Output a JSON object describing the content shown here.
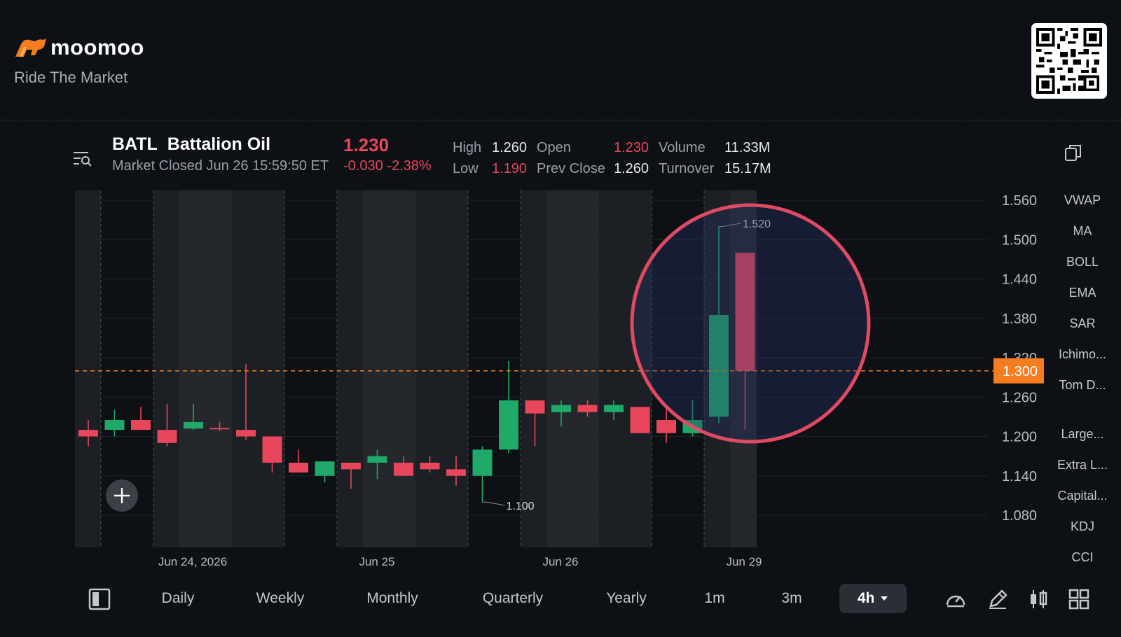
{
  "brand": {
    "name": "moomoo",
    "tagline": "Ride The Market"
  },
  "quote": {
    "ticker": "BATL",
    "company": "Battalion Oil",
    "status": "Market Closed Jun 26 15:59:50 ET",
    "price": "1.230",
    "change": "-0.030",
    "change_pct": "-2.38%",
    "high_label": "High",
    "high": "1.260",
    "low_label": "Low",
    "low": "1.190",
    "open_label": "Open",
    "open": "1.230",
    "prev_close_label": "Prev Close",
    "prev_close": "1.260",
    "volume_label": "Volume",
    "volume": "11.33M",
    "turnover_label": "Turnover",
    "turnover": "15.17M"
  },
  "colors": {
    "up": "#1faa6a",
    "down": "#e8465a",
    "accent": "#f57d1f",
    "highlight": "#e04a63",
    "background": "#0d1014"
  },
  "icons": [
    "moomoo-bull-logo",
    "qr-code",
    "menu-search-icon",
    "copy-icon",
    "add-icon",
    "layout-icon",
    "speedometer-icon",
    "pencil-icon",
    "candlestick-icon",
    "grid-icon",
    "caret-down-icon"
  ],
  "chart_data": {
    "type": "candlestick",
    "interval": "4h",
    "y_ticks": [
      "1.560",
      "1.500",
      "1.440",
      "1.380",
      "1.320",
      "1.260",
      "1.200",
      "1.140",
      "1.080"
    ],
    "ylim": [
      1.06,
      1.58
    ],
    "current_price_label": "1.300",
    "current_price": 1.3,
    "high_annotation": "1.520",
    "low_annotation": "1.100",
    "x_labels": [
      "Jun 24, 2026",
      "Jun 25",
      "Jun 26",
      "Jun 29"
    ],
    "candles": [
      {
        "o": 1.21,
        "h": 1.225,
        "l": 1.185,
        "c": 1.2
      },
      {
        "o": 1.21,
        "h": 1.24,
        "l": 1.2,
        "c": 1.225
      },
      {
        "o": 1.225,
        "h": 1.245,
        "l": 1.21,
        "c": 1.21
      },
      {
        "o": 1.21,
        "h": 1.25,
        "l": 1.185,
        "c": 1.19
      },
      {
        "o": 1.212,
        "h": 1.25,
        "l": 1.21,
        "c": 1.222
      },
      {
        "o": 1.213,
        "h": 1.222,
        "l": 1.208,
        "c": 1.211
      },
      {
        "o": 1.21,
        "h": 1.31,
        "l": 1.195,
        "c": 1.2
      },
      {
        "o": 1.2,
        "h": 1.2,
        "l": 1.145,
        "c": 1.16
      },
      {
        "o": 1.16,
        "h": 1.18,
        "l": 1.145,
        "c": 1.145
      },
      {
        "o": 1.14,
        "h": 1.162,
        "l": 1.13,
        "c": 1.162
      },
      {
        "o": 1.16,
        "h": 1.16,
        "l": 1.12,
        "c": 1.15
      },
      {
        "o": 1.16,
        "h": 1.18,
        "l": 1.135,
        "c": 1.17
      },
      {
        "o": 1.16,
        "h": 1.17,
        "l": 1.14,
        "c": 1.14
      },
      {
        "o": 1.16,
        "h": 1.17,
        "l": 1.145,
        "c": 1.15
      },
      {
        "o": 1.15,
        "h": 1.17,
        "l": 1.125,
        "c": 1.14
      },
      {
        "o": 1.14,
        "h": 1.185,
        "l": 1.1,
        "c": 1.18
      },
      {
        "o": 1.18,
        "h": 1.315,
        "l": 1.175,
        "c": 1.255
      },
      {
        "o": 1.255,
        "h": 1.255,
        "l": 1.185,
        "c": 1.235
      },
      {
        "o": 1.237,
        "h": 1.255,
        "l": 1.215,
        "c": 1.248
      },
      {
        "o": 1.248,
        "h": 1.255,
        "l": 1.23,
        "c": 1.237
      },
      {
        "o": 1.237,
        "h": 1.255,
        "l": 1.225,
        "c": 1.248
      },
      {
        "o": 1.245,
        "h": 1.245,
        "l": 1.205,
        "c": 1.205
      },
      {
        "o": 1.225,
        "h": 1.245,
        "l": 1.19,
        "c": 1.205
      },
      {
        "o": 1.205,
        "h": 1.255,
        "l": 1.2,
        "c": 1.225
      },
      {
        "o": 1.23,
        "h": 1.52,
        "l": 1.22,
        "c": 1.385
      },
      {
        "o": 1.48,
        "h": 1.48,
        "l": 1.21,
        "c": 1.3
      }
    ],
    "sessions": [
      {
        "premarket": true
      },
      {
        "premarket": false
      },
      {
        "premarket": true
      },
      {
        "premarket": false
      },
      {
        "premarket": true
      },
      {
        "premarket": false
      },
      {
        "premarket": true
      },
      {
        "premarket": false
      },
      {
        "premarket": true
      }
    ]
  },
  "indicators": [
    "VWAP",
    "MA",
    "BOLL",
    "EMA",
    "SAR",
    "Ichimo...",
    "Tom D...",
    "Large...",
    "Extra L...",
    "Capital...",
    "KDJ",
    "CCI"
  ],
  "toolbar": {
    "periods": [
      "Daily",
      "Weekly",
      "Monthly",
      "Quarterly",
      "Yearly",
      "1m",
      "3m"
    ],
    "active": "4h"
  }
}
